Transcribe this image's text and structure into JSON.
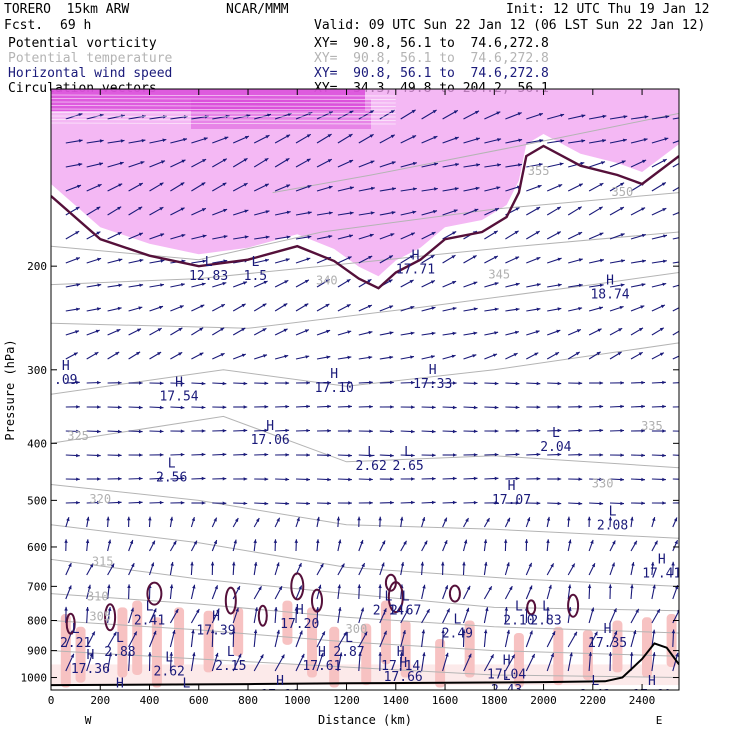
{
  "header": {
    "model": "TORERO  15km ARW",
    "org": "NCAR/MMM",
    "init": "Init: 12 UTC Thu 19 Jan 12",
    "fcst_label": "Fcst.",
    "fcst_value": "69 h",
    "valid": "Valid: 09 UTC Sun 22 Jan 12 (06 LST Sun 22 Jan 12)"
  },
  "legend": [
    {
      "name": "Potential vorticity",
      "xy": "XY=  90.8, 56.1 to  74.6,272.8",
      "color": "#000000"
    },
    {
      "name": "Potential temperature",
      "xy": "XY=  90.8, 56.1 to  74.6,272.8",
      "color": "#b4b4b4"
    },
    {
      "name": "Horizontal wind speed",
      "xy": "XY=  90.8, 56.1 to  74.6,272.8",
      "color": "#1a1a7a"
    },
    {
      "name": "Circulation vectors",
      "xy": "XY=  34.3, 49.8 to 204.2, 56.1",
      "color": "#000000"
    }
  ],
  "chart_data": {
    "type": "cross-section",
    "xlabel": "Distance (km)",
    "ylabel": "Pressure (hPa)",
    "xlim": [
      0,
      2550
    ],
    "ylim_hpa": [
      1050,
      100
    ],
    "y_scale": "log-pressure",
    "x_ticks": [
      0,
      200,
      400,
      600,
      800,
      1000,
      1200,
      1400,
      1600,
      1800,
      2000,
      2200,
      2400
    ],
    "y_ticks": [
      200,
      300,
      400,
      500,
      600,
      700,
      800,
      900,
      1000
    ],
    "x_end_labels": {
      "left": "W",
      "right": "E"
    },
    "theta_contours": [
      {
        "label": "355",
        "points": [
          [
            900,
            150
          ],
          [
            1300,
            140
          ],
          [
            1900,
            125
          ],
          [
            2550,
            110
          ]
        ]
      },
      {
        "label": "345",
        "points": [
          [
            0,
            185
          ],
          [
            600,
            195
          ],
          [
            1100,
            175
          ],
          [
            1800,
            160
          ],
          [
            2550,
            150
          ]
        ]
      },
      {
        "label": "340",
        "points": [
          [
            0,
            215
          ],
          [
            600,
            210
          ],
          [
            1100,
            200
          ],
          [
            1900,
            185
          ],
          [
            2550,
            175
          ]
        ]
      },
      {
        "label": "335",
        "points": [
          [
            0,
            250
          ],
          [
            800,
            255
          ],
          [
            1500,
            235
          ],
          [
            2200,
            215
          ],
          [
            2550,
            205
          ]
        ]
      },
      {
        "label": "330",
        "points": [
          [
            0,
            330
          ],
          [
            700,
            300
          ],
          [
            1200,
            320
          ],
          [
            1800,
            300
          ],
          [
            2550,
            270
          ]
        ]
      },
      {
        "label": "325",
        "points": [
          [
            0,
            400
          ],
          [
            700,
            360
          ],
          [
            1200,
            430
          ],
          [
            1800,
            420
          ],
          [
            2550,
            440
          ]
        ]
      },
      {
        "label": "320",
        "points": [
          [
            0,
            470
          ],
          [
            600,
            500
          ],
          [
            1200,
            550
          ],
          [
            1800,
            560
          ],
          [
            2550,
            580
          ]
        ]
      },
      {
        "label": "315",
        "points": [
          [
            0,
            550
          ],
          [
            600,
            590
          ],
          [
            1200,
            650
          ],
          [
            1900,
            680
          ],
          [
            2550,
            700
          ]
        ]
      },
      {
        "label": "310",
        "points": [
          [
            0,
            630
          ],
          [
            600,
            680
          ],
          [
            1200,
            720
          ],
          [
            1800,
            760
          ],
          [
            2550,
            770
          ]
        ]
      },
      {
        "label": "305",
        "points": [
          [
            0,
            720
          ],
          [
            600,
            750
          ],
          [
            1200,
            790
          ],
          [
            1800,
            820
          ],
          [
            2550,
            840
          ]
        ]
      },
      {
        "label": "300",
        "points": [
          [
            0,
            800
          ],
          [
            600,
            830
          ],
          [
            1200,
            870
          ],
          [
            1800,
            900
          ],
          [
            2550,
            920
          ]
        ]
      },
      {
        "label": "295",
        "points": [
          [
            0,
            900
          ],
          [
            600,
            930
          ],
          [
            1200,
            960
          ],
          [
            1800,
            990
          ],
          [
            2550,
            1000
          ]
        ]
      }
    ],
    "theta_labels": [
      {
        "text": "355",
        "x": 1980,
        "p": 140
      },
      {
        "text": "350",
        "x": 2320,
        "p": 152
      },
      {
        "text": "345",
        "x": 1820,
        "p": 210
      },
      {
        "text": "340",
        "x": 1120,
        "p": 215
      },
      {
        "text": "335",
        "x": 2440,
        "p": 380
      },
      {
        "text": "330",
        "x": 2240,
        "p": 475
      },
      {
        "text": "325",
        "x": 110,
        "p": 395
      },
      {
        "text": "320",
        "x": 200,
        "p": 505
      },
      {
        "text": "315",
        "x": 210,
        "p": 645
      },
      {
        "text": "310",
        "x": 190,
        "p": 740
      },
      {
        "text": "305",
        "x": 200,
        "p": 800
      },
      {
        "text": "300",
        "x": 1240,
        "p": 840
      }
    ],
    "wind_extrema": [
      {
        "kind": "L",
        "value": "12.83",
        "x": 640,
        "p": 200
      },
      {
        "kind": "L",
        "value": "1.5",
        "x": 830,
        "p": 200
      },
      {
        "kind": "H",
        "value": "17.71",
        "x": 1480,
        "p": 195
      },
      {
        "kind": "H",
        "value": "18.74",
        "x": 2270,
        "p": 215
      },
      {
        "kind": "H",
        "value": ".09",
        "x": 60,
        "p": 300
      },
      {
        "kind": "H",
        "value": "17.54",
        "x": 520,
        "p": 320
      },
      {
        "kind": "H",
        "value": "17.10",
        "x": 1150,
        "p": 310
      },
      {
        "kind": "H",
        "value": "17.33",
        "x": 1550,
        "p": 305
      },
      {
        "kind": "H",
        "value": "17.06",
        "x": 890,
        "p": 380
      },
      {
        "kind": "L",
        "value": "2.56",
        "x": 490,
        "p": 440
      },
      {
        "kind": "L",
        "value": "2.62",
        "x": 1300,
        "p": 420
      },
      {
        "kind": "L",
        "value": "2.65",
        "x": 1450,
        "p": 420
      },
      {
        "kind": "L",
        "value": "2.04",
        "x": 2050,
        "p": 390
      },
      {
        "kind": "H",
        "value": "17.07",
        "x": 1870,
        "p": 480
      },
      {
        "kind": "L",
        "value": "2.08",
        "x": 2280,
        "p": 530
      },
      {
        "kind": "H",
        "value": "17.41",
        "x": 2480,
        "p": 640
      },
      {
        "kind": "L",
        "value": "2.41",
        "x": 400,
        "p": 770
      },
      {
        "kind": "H",
        "value": "17.39",
        "x": 670,
        "p": 800
      },
      {
        "kind": "H",
        "value": "17.20",
        "x": 1010,
        "p": 780
      },
      {
        "kind": "L",
        "value": "2.14",
        "x": 1370,
        "p": 740
      },
      {
        "kind": "L",
        "value": "2.67",
        "x": 1440,
        "p": 740
      },
      {
        "kind": "L",
        "value": "2.49",
        "x": 1650,
        "p": 810
      },
      {
        "kind": "L",
        "value": "2.10",
        "x": 1900,
        "p": 770
      },
      {
        "kind": "L",
        "value": "2.83",
        "x": 2010,
        "p": 770
      },
      {
        "kind": "L",
        "value": "2.21",
        "x": 100,
        "p": 840
      },
      {
        "kind": "L",
        "value": "2.88",
        "x": 280,
        "p": 870
      },
      {
        "kind": "L",
        "value": "2.87",
        "x": 1210,
        "p": 870
      },
      {
        "kind": "H",
        "value": "17.36",
        "x": 160,
        "p": 930
      },
      {
        "kind": "L",
        "value": "2.62",
        "x": 480,
        "p": 940
      },
      {
        "kind": "L",
        "value": "2.15",
        "x": 730,
        "p": 920
      },
      {
        "kind": "H",
        "value": "17.61",
        "x": 1100,
        "p": 920
      },
      {
        "kind": "H",
        "value": "17.14",
        "x": 1420,
        "p": 920
      },
      {
        "kind": "H",
        "value": "17.66",
        "x": 1430,
        "p": 960
      },
      {
        "kind": "H",
        "value": "17.04",
        "x": 1850,
        "p": 950
      },
      {
        "kind": "H",
        "value": "17.35",
        "x": 2260,
        "p": 840
      },
      {
        "kind": "L",
        "value": "2.43",
        "x": 1850,
        "p": 1010
      },
      {
        "kind": "L",
        "value": "2.43",
        "x": 2210,
        "p": 1030
      },
      {
        "kind": "H",
        "value": "17.60",
        "x": 2440,
        "p": 1030
      },
      {
        "kind": "H",
        "value": "17.16",
        "x": 930,
        "p": 1030
      },
      {
        "kind": "H",
        "value": "17.52",
        "x": 280,
        "p": 1040
      },
      {
        "kind": "L",
        "value": "2.88",
        "x": 550,
        "p": 1040
      }
    ],
    "tropopause_pv2": [
      [
        0,
        152
      ],
      [
        200,
        180
      ],
      [
        400,
        192
      ],
      [
        600,
        200
      ],
      [
        800,
        195
      ],
      [
        1000,
        185
      ],
      [
        1150,
        196
      ],
      [
        1250,
        210
      ],
      [
        1330,
        218
      ],
      [
        1400,
        205
      ],
      [
        1500,
        195
      ],
      [
        1600,
        180
      ],
      [
        1750,
        175
      ],
      [
        1850,
        165
      ],
      [
        1900,
        150
      ],
      [
        1930,
        130
      ],
      [
        2000,
        125
      ],
      [
        2150,
        135
      ],
      [
        2300,
        140
      ],
      [
        2400,
        145
      ],
      [
        2550,
        130
      ]
    ],
    "terrain": [
      [
        0,
        1030
      ],
      [
        400,
        1028
      ],
      [
        800,
        1026
      ],
      [
        1200,
        1023
      ],
      [
        1600,
        1021
      ],
      [
        2000,
        1018
      ],
      [
        2250,
        1015
      ],
      [
        2320,
        1000
      ],
      [
        2400,
        930
      ],
      [
        2450,
        875
      ],
      [
        2500,
        890
      ],
      [
        2550,
        950
      ]
    ],
    "colors": {
      "pv_high": "#d844d8",
      "pv_mid": "#f0a0f0",
      "pv_shade_low": "#f7c2c2",
      "wind_vectors": "#1a1a7a",
      "theta": "#b4b4b4",
      "pv_contour": "#55103a"
    }
  }
}
